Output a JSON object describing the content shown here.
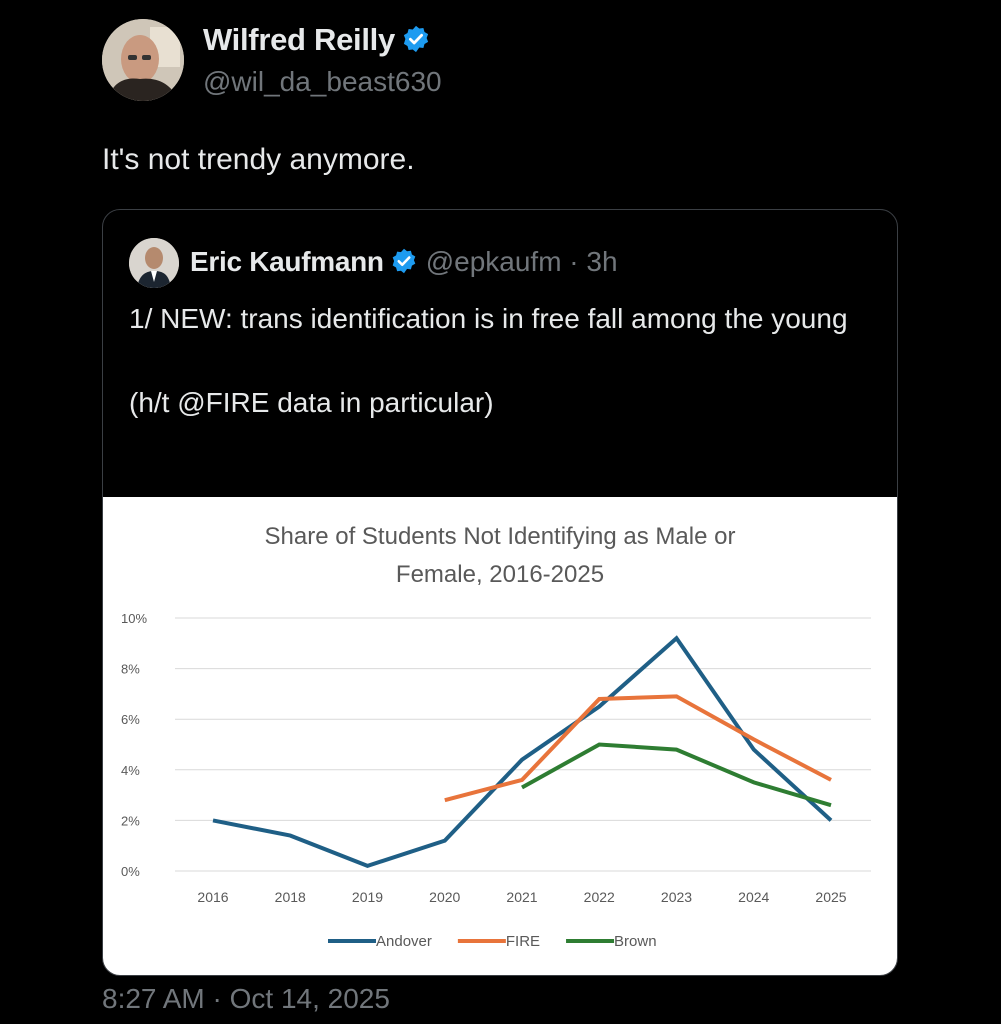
{
  "author": {
    "name": "Wilfred Reilly",
    "handle": "@wil_da_beast630",
    "verified_color": "#1d9bf0"
  },
  "tweet": {
    "text": "It's not trendy anymore.",
    "timestamp": "8:27 AM · Oct 14, 2025"
  },
  "quote": {
    "name": "Eric Kaufmann",
    "handle_time": "@epkaufm · 3h",
    "line1": "1/ NEW: trans identification is in free fall among the young",
    "line2": "(h/t @FIRE data in particular)"
  },
  "chart_data": {
    "type": "line",
    "title_lines": [
      "Share of Students Not Identifying as Male or",
      "Female, 2016-2025"
    ],
    "categories": [
      "2016",
      "2018",
      "2019",
      "2020",
      "2021",
      "2022",
      "2023",
      "2024",
      "2025"
    ],
    "ylim": [
      0,
      10
    ],
    "yticks": [
      "0%",
      "2%",
      "4%",
      "6%",
      "8%",
      "10%"
    ],
    "grid": true,
    "legend_position": "bottom",
    "series": [
      {
        "name": "Andover",
        "color": "#1f5f86",
        "values": [
          2.0,
          1.4,
          0.2,
          1.2,
          4.4,
          6.5,
          9.2,
          4.8,
          2.0
        ]
      },
      {
        "name": "FIRE",
        "color": "#e8743b",
        "values": [
          null,
          null,
          null,
          2.8,
          3.6,
          6.8,
          6.9,
          5.2,
          3.6
        ]
      },
      {
        "name": "Brown",
        "color": "#2e7d32",
        "values": [
          null,
          null,
          null,
          null,
          3.3,
          5.0,
          4.8,
          3.5,
          2.6
        ]
      }
    ]
  }
}
